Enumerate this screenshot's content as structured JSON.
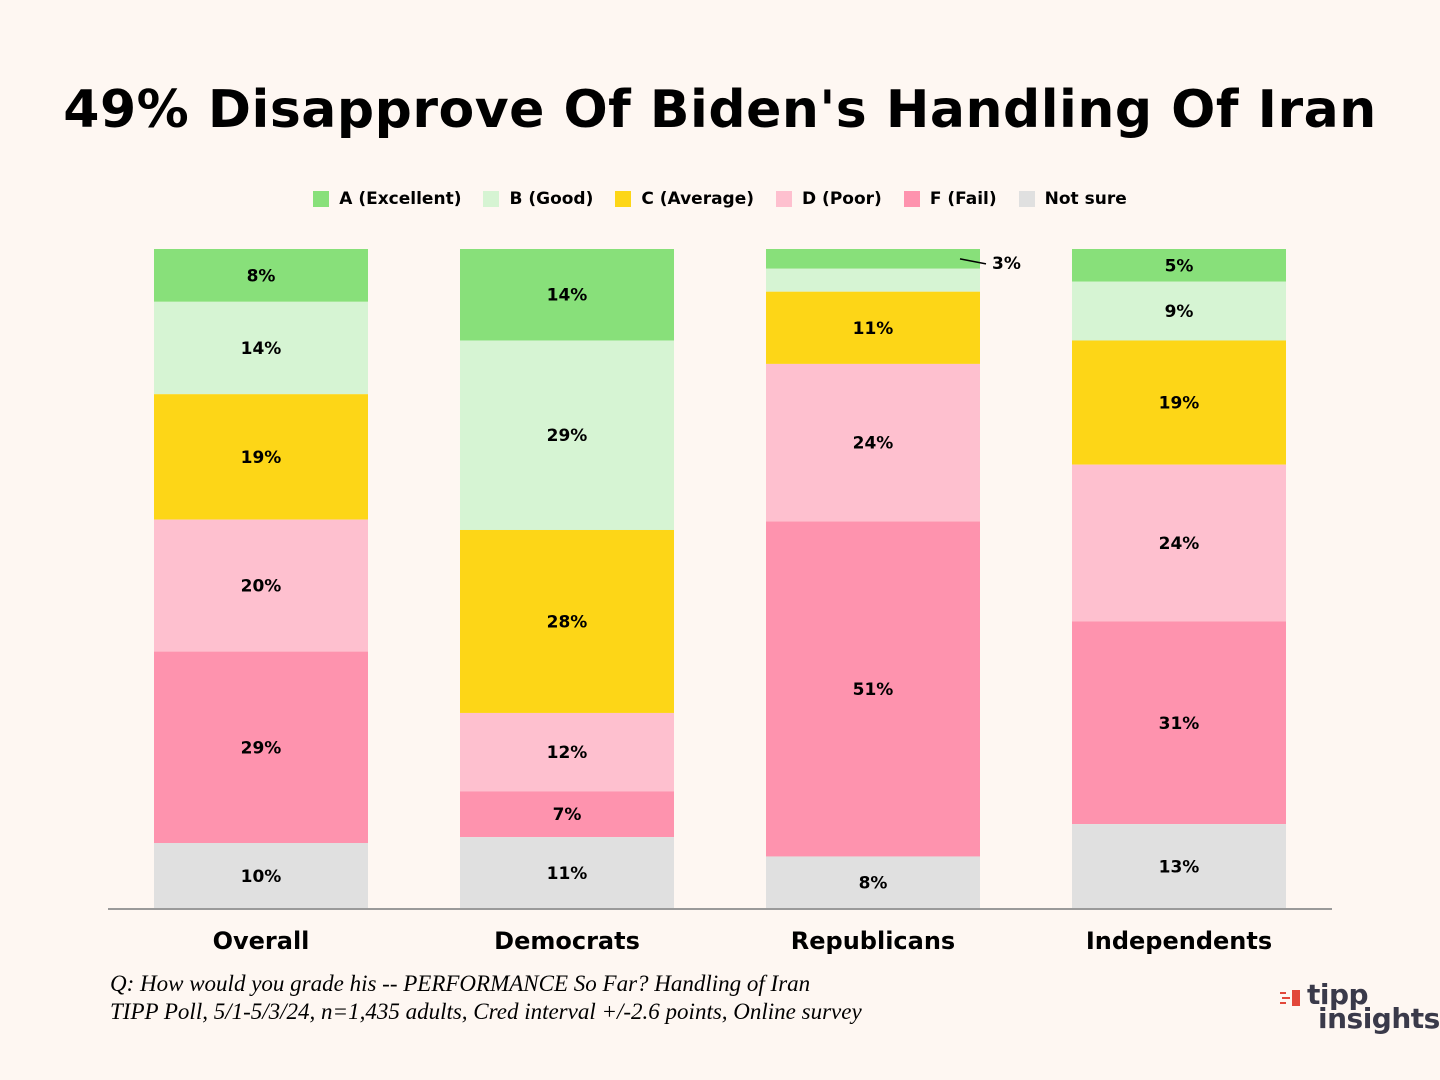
{
  "chart_data": {
    "type": "bar",
    "stacked": true,
    "percent_stacked": true,
    "title": "49% Disapprove Of Biden's Handling Of Iran",
    "categories": [
      "Overall",
      "Democrats",
      "Republicans",
      "Independents"
    ],
    "legend_position": "top",
    "series": [
      {
        "name": "A (Excellent)",
        "color": "#88E07A",
        "values": [
          8,
          14,
          3,
          5
        ],
        "labels": [
          "8%",
          "14%",
          "",
          "5%"
        ]
      },
      {
        "name": "B (Good)",
        "color": "#D6F4D3",
        "values": [
          14,
          29,
          3.5,
          9
        ],
        "labels": [
          "14%",
          "29%",
          "",
          "9%"
        ]
      },
      {
        "name": "C (Average)",
        "color": "#FDD617",
        "values": [
          19,
          28,
          11,
          19
        ],
        "labels": [
          "19%",
          "28%",
          "11%",
          "19%"
        ]
      },
      {
        "name": "D (Poor)",
        "color": "#FEC0CF",
        "values": [
          20,
          12,
          24,
          24
        ],
        "labels": [
          "20%",
          "12%",
          "24%",
          "24%"
        ]
      },
      {
        "name": "F (Fail)",
        "color": "#FE93AE",
        "values": [
          29,
          7,
          51,
          31
        ],
        "labels": [
          "29%",
          "7%",
          "51%",
          "31%"
        ]
      },
      {
        "name": "Not sure",
        "color": "#E0E0E0",
        "values": [
          10,
          11,
          8,
          13
        ],
        "labels": [
          "10%",
          "11%",
          "8%",
          "13%"
        ]
      }
    ],
    "annotations": [
      {
        "category": "Republicans",
        "series": "A (Excellent)",
        "text": "3%"
      }
    ]
  },
  "footnote": {
    "line1": "Q:  How would you grade his -- PERFORMANCE So Far?  Handling of Iran",
    "line2": "TIPP Poll, 5/1-5/3/24, n=1,435 adults, Cred interval +/-2.6 points, Online survey"
  },
  "logo": {
    "line1": "tipp",
    "line2": "insights",
    "mark_color": "#E2473A"
  }
}
